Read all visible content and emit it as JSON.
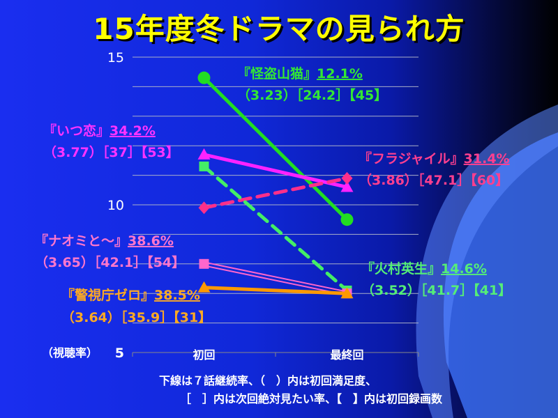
{
  "page_title": "15年度冬ドラマの見られ方",
  "colors": {
    "title": "#ffff00",
    "kaito": "#22dd22",
    "itsukoi": "#ff22ff",
    "fragile": "#ff2f8a",
    "himura": "#44ee66",
    "naomi": "#ff66cc",
    "zero": "#ff9900"
  },
  "chart_data": {
    "type": "line",
    "categories": [
      "初回",
      "最終回"
    ],
    "ylim": [
      5,
      15
    ],
    "yticks": [
      "15",
      "10"
    ],
    "ytick_bottom": "5",
    "ylabel": "（視聴率）",
    "grid": true,
    "series": [
      {
        "id": "kaito",
        "name": "『怪盗山猫』",
        "values": [
          14.3,
          9.5
        ],
        "style": "solid",
        "marker": "circle",
        "rate": "12.1%",
        "detail": "（3.23）［24.2］【45】"
      },
      {
        "id": "itsukoi",
        "name": "『いつ恋』",
        "values": [
          11.7,
          10.6
        ],
        "style": "solid",
        "marker": "triangle",
        "rate": "34.2%",
        "detail": "（3.77）［37］【53】"
      },
      {
        "id": "fragile",
        "name": "『フラジャイル』",
        "values": [
          9.9,
          10.9
        ],
        "style": "dashed",
        "marker": "diamond",
        "rate": "31.4%",
        "detail": "（3.86）［47.1］【60】"
      },
      {
        "id": "himura",
        "name": "『火村英生』",
        "values": [
          11.3,
          7.1
        ],
        "style": "dashed",
        "marker": "square",
        "rate": "14.6%",
        "detail": "（3.52）［41.7］【41】"
      },
      {
        "id": "naomi",
        "name": "『ナオミと～』",
        "values": [
          8.0,
          7.0
        ],
        "style": "double",
        "marker": "square",
        "rate": "38.6%",
        "detail": "（3.65）［42.1］【54】"
      },
      {
        "id": "zero",
        "name": "『警視庁ゼロ』",
        "values": [
          7.2,
          7.0
        ],
        "style": "solid",
        "marker": "triangle",
        "rate": "38.5%",
        "detail": "（3.64）［35.9］【31】"
      }
    ]
  },
  "footnote": {
    "line1": "下線は７話継続率、（　）内は初回満足度、",
    "line2": "［　］内は次回絶対見たい率、【　】内は初回録画数"
  }
}
